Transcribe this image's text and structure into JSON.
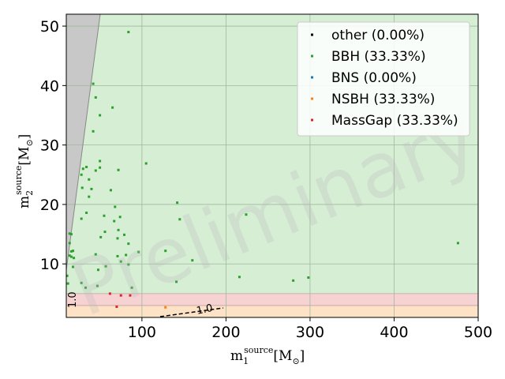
{
  "chart_data": {
    "type": "scatter",
    "xlabel": {
      "base": "m",
      "sub": "1",
      "sup": "source",
      "unit": "[M",
      "unit_sub": "⊙",
      "unit_close": "]"
    },
    "ylabel": {
      "base": "m",
      "sub": "2",
      "sup": "source",
      "unit": "[M",
      "unit_sub": "⊙",
      "unit_close": "]"
    },
    "xlim": [
      10,
      500
    ],
    "ylim": [
      1,
      52
    ],
    "xticks": [
      100,
      200,
      300,
      400,
      500
    ],
    "yticks": [
      10,
      20,
      30,
      40,
      50
    ],
    "x_tick_labels": [
      "100",
      "200",
      "300",
      "400",
      "500"
    ],
    "y_tick_labels": [
      "10",
      "20",
      "30",
      "40",
      "50"
    ],
    "grid": true,
    "legend_placement": "top-right",
    "watermark": "Preliminary",
    "contour_labels": [
      "1.0",
      "1.0"
    ],
    "regions": [
      {
        "name": "BBH",
        "color": "#d6eed4",
        "m2_min": 5,
        "m2_max": 52
      },
      {
        "name": "MassGap",
        "color": "#f7d2d3",
        "m2_min": 3,
        "m2_max": 5
      },
      {
        "name": "NSBH",
        "color": "#fde2c6",
        "m2_min": 1,
        "m2_max": 3
      },
      {
        "name": "excluded",
        "color": "#c8c8c8"
      }
    ],
    "series": [
      {
        "name": "other (0.00%)",
        "color": "#000000",
        "points": []
      },
      {
        "name": "BBH (33.33%)",
        "color": "#2ca02c",
        "points": [
          [
            84,
            49
          ],
          [
            42,
            40.3
          ],
          [
            45,
            38
          ],
          [
            65,
            36.3
          ],
          [
            50,
            35
          ],
          [
            42,
            32.3
          ],
          [
            50,
            27.3
          ],
          [
            105,
            26.9
          ],
          [
            30,
            26
          ],
          [
            34,
            26.3
          ],
          [
            45,
            25.7
          ],
          [
            50,
            26.2
          ],
          [
            72,
            25.8
          ],
          [
            28,
            25
          ],
          [
            37,
            24.2
          ],
          [
            29,
            22.8
          ],
          [
            40,
            22.6
          ],
          [
            63,
            22.4
          ],
          [
            37,
            21.3
          ],
          [
            142,
            20.3
          ],
          [
            68,
            19.6
          ],
          [
            224,
            18.3
          ],
          [
            55,
            18.1
          ],
          [
            34,
            18.6
          ],
          [
            28,
            17.6
          ],
          [
            145,
            17.5
          ],
          [
            74,
            17.9
          ],
          [
            67,
            17.2
          ],
          [
            72,
            15.7
          ],
          [
            56,
            15.4
          ],
          [
            14,
            15.1
          ],
          [
            16,
            15
          ],
          [
            79,
            14.9
          ],
          [
            51,
            14.5
          ],
          [
            71,
            14.3
          ],
          [
            84,
            13.4
          ],
          [
            14,
            13.5
          ],
          [
            18,
            12.2
          ],
          [
            16,
            12.1
          ],
          [
            128,
            12.2
          ],
          [
            96,
            12
          ],
          [
            45,
            11.6
          ],
          [
            71,
            11.3
          ],
          [
            81,
            11.5
          ],
          [
            14,
            11.4
          ],
          [
            16,
            11.2
          ],
          [
            19,
            11
          ],
          [
            160,
            10.6
          ],
          [
            75,
            10.4
          ],
          [
            84,
            9.9
          ],
          [
            57,
            9.6
          ],
          [
            18,
            9.5
          ],
          [
            48,
            9
          ],
          [
            11,
            8
          ],
          [
            216,
            7.8
          ],
          [
            298,
            7.7
          ],
          [
            141,
            7
          ],
          [
            280,
            7.2
          ],
          [
            28,
            6.8
          ],
          [
            12,
            6.7
          ],
          [
            47,
            6.3
          ],
          [
            33,
            6
          ],
          [
            88,
            6
          ],
          [
            476,
            13.5
          ]
        ]
      },
      {
        "name": "BNS (0.00%)",
        "color": "#1f77b4",
        "points": []
      },
      {
        "name": "NSBH (33.33%)",
        "color": "#ff7f0e",
        "points": [
          [
            128,
            2.7
          ]
        ]
      },
      {
        "name": "MassGap (33.33%)",
        "color": "#d62728",
        "points": [
          [
            62,
            5
          ],
          [
            75,
            4.7
          ],
          [
            86,
            4.7
          ],
          [
            70,
            2.8
          ]
        ]
      }
    ]
  }
}
